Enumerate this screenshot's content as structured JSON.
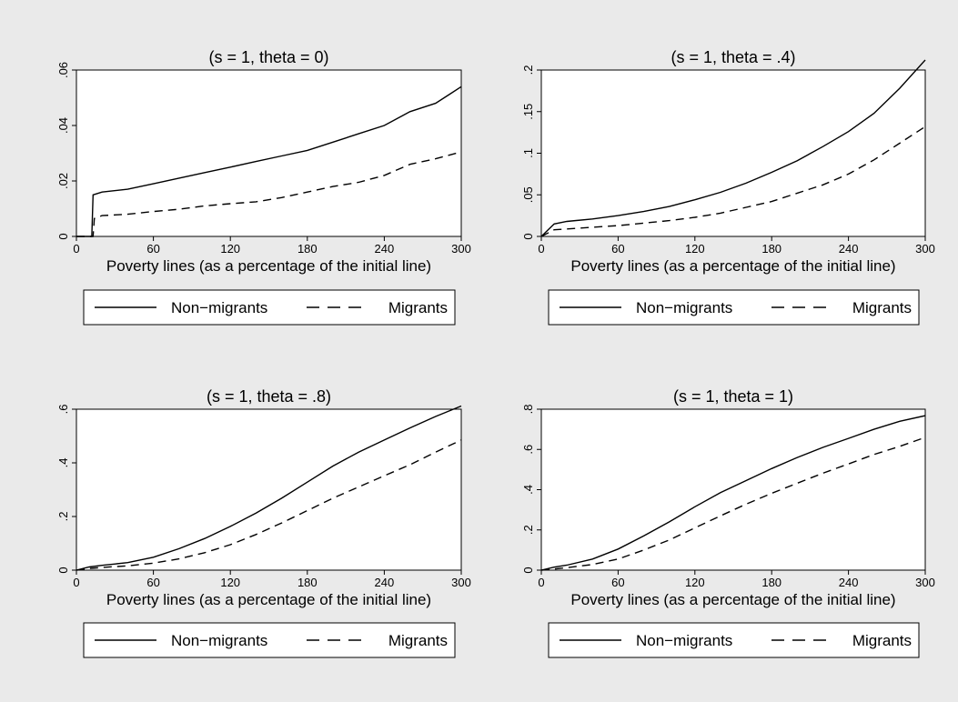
{
  "chart_data": [
    {
      "type": "line",
      "title": "(s = 1, theta = 0)",
      "xlabel": "Poverty lines (as a percentage of the initial line)",
      "ylabel": "",
      "xlim": [
        0,
        300
      ],
      "ylim": [
        0,
        0.06
      ],
      "xticks": [
        0,
        60,
        120,
        180,
        240,
        300
      ],
      "xtick_labels": [
        "0",
        "60",
        "120",
        "180",
        "240",
        "300"
      ],
      "yticks": [
        0,
        0.02,
        0.04,
        0.06
      ],
      "ytick_labels": [
        "0",
        ".02",
        ".04",
        ".06"
      ],
      "legend": "bottom",
      "series": [
        {
          "name": "Non−migrants",
          "style": "solid",
          "x": [
            0,
            12,
            13,
            20,
            40,
            60,
            80,
            100,
            120,
            140,
            160,
            180,
            200,
            220,
            240,
            260,
            280,
            290,
            300
          ],
          "y": [
            0,
            0,
            0.015,
            0.016,
            0.017,
            0.019,
            0.021,
            0.023,
            0.025,
            0.027,
            0.029,
            0.031,
            0.034,
            0.037,
            0.04,
            0.045,
            0.048,
            0.051,
            0.054
          ]
        },
        {
          "name": "Migrants",
          "style": "dashed",
          "x": [
            0,
            13,
            14,
            20,
            40,
            60,
            80,
            100,
            120,
            140,
            160,
            180,
            200,
            220,
            240,
            260,
            280,
            300
          ],
          "y": [
            0,
            0,
            0.0065,
            0.0075,
            0.008,
            0.009,
            0.0098,
            0.011,
            0.0118,
            0.0125,
            0.014,
            0.016,
            0.018,
            0.0195,
            0.022,
            0.026,
            0.028,
            0.0305
          ]
        }
      ]
    },
    {
      "type": "line",
      "title": "(s = 1, theta = .4)",
      "xlabel": "Poverty lines (as a percentage of the initial line)",
      "ylabel": "",
      "xlim": [
        0,
        300
      ],
      "ylim": [
        0,
        0.2
      ],
      "xticks": [
        0,
        60,
        120,
        180,
        240,
        300
      ],
      "xtick_labels": [
        "0",
        "60",
        "120",
        "180",
        "240",
        "300"
      ],
      "yticks": [
        0,
        0.05,
        0.1,
        0.15,
        0.2
      ],
      "ytick_labels": [
        "0",
        ".05",
        ".1",
        ".15",
        ".2"
      ],
      "legend": "bottom",
      "series": [
        {
          "name": "Non−migrants",
          "style": "solid",
          "x": [
            0,
            10,
            20,
            40,
            60,
            80,
            100,
            120,
            140,
            160,
            180,
            200,
            220,
            240,
            260,
            280,
            300
          ],
          "y": [
            0,
            0.015,
            0.018,
            0.021,
            0.025,
            0.03,
            0.036,
            0.044,
            0.053,
            0.064,
            0.077,
            0.091,
            0.108,
            0.126,
            0.148,
            0.178,
            0.212
          ]
        },
        {
          "name": "Migrants",
          "style": "dashed",
          "x": [
            0,
            10,
            20,
            40,
            60,
            80,
            100,
            120,
            140,
            160,
            180,
            200,
            220,
            240,
            260,
            280,
            300
          ],
          "y": [
            0,
            0.008,
            0.009,
            0.011,
            0.013,
            0.016,
            0.019,
            0.023,
            0.028,
            0.035,
            0.042,
            0.052,
            0.062,
            0.075,
            0.092,
            0.112,
            0.132
          ]
        }
      ]
    },
    {
      "type": "line",
      "title": "(s = 1, theta = .8)",
      "xlabel": "Poverty lines (as a percentage of the initial line)",
      "ylabel": "",
      "xlim": [
        0,
        300
      ],
      "ylim": [
        0,
        0.6
      ],
      "xticks": [
        0,
        60,
        120,
        180,
        240,
        300
      ],
      "xtick_labels": [
        "0",
        "60",
        "120",
        "180",
        "240",
        "300"
      ],
      "yticks": [
        0,
        0.2,
        0.4,
        0.6
      ],
      "ytick_labels": [
        "0",
        ".2",
        ".4",
        ".6"
      ],
      "legend": "bottom",
      "series": [
        {
          "name": "Non−migrants",
          "style": "solid",
          "x": [
            0,
            10,
            20,
            40,
            60,
            80,
            100,
            120,
            140,
            160,
            180,
            200,
            220,
            240,
            260,
            280,
            300
          ],
          "y": [
            0,
            0.012,
            0.018,
            0.028,
            0.048,
            0.08,
            0.118,
            0.163,
            0.213,
            0.268,
            0.328,
            0.388,
            0.44,
            0.485,
            0.53,
            0.573,
            0.612
          ]
        },
        {
          "name": "Migrants",
          "style": "dashed",
          "x": [
            0,
            10,
            20,
            40,
            60,
            80,
            100,
            120,
            140,
            160,
            180,
            200,
            220,
            240,
            260,
            280,
            300
          ],
          "y": [
            0,
            0.006,
            0.01,
            0.016,
            0.026,
            0.042,
            0.065,
            0.095,
            0.133,
            0.176,
            0.222,
            0.268,
            0.31,
            0.352,
            0.393,
            0.44,
            0.485
          ]
        }
      ]
    },
    {
      "type": "line",
      "title": "(s = 1, theta = 1)",
      "xlabel": "Poverty lines (as a percentage of the initial line)",
      "ylabel": "",
      "xlim": [
        0,
        300
      ],
      "ylim": [
        0,
        0.8
      ],
      "xticks": [
        0,
        60,
        120,
        180,
        240,
        300
      ],
      "xtick_labels": [
        "0",
        "60",
        "120",
        "180",
        "240",
        "300"
      ],
      "yticks": [
        0,
        0.2,
        0.4,
        0.6,
        0.8
      ],
      "ytick_labels": [
        "0",
        ".2",
        ".4",
        ".6",
        ".8"
      ],
      "legend": "bottom",
      "series": [
        {
          "name": "Non−migrants",
          "style": "solid",
          "x": [
            0,
            10,
            20,
            40,
            60,
            80,
            100,
            120,
            140,
            160,
            180,
            200,
            220,
            240,
            260,
            280,
            300
          ],
          "y": [
            0,
            0.015,
            0.025,
            0.055,
            0.105,
            0.17,
            0.24,
            0.315,
            0.385,
            0.445,
            0.505,
            0.56,
            0.61,
            0.655,
            0.7,
            0.74,
            0.768
          ]
        },
        {
          "name": "Migrants",
          "style": "dashed",
          "x": [
            0,
            10,
            20,
            40,
            60,
            80,
            100,
            120,
            140,
            160,
            180,
            200,
            220,
            240,
            260,
            280,
            300
          ],
          "y": [
            0,
            0.006,
            0.012,
            0.028,
            0.055,
            0.1,
            0.15,
            0.21,
            0.27,
            0.328,
            0.382,
            0.432,
            0.482,
            0.528,
            0.575,
            0.615,
            0.66
          ]
        }
      ]
    }
  ]
}
